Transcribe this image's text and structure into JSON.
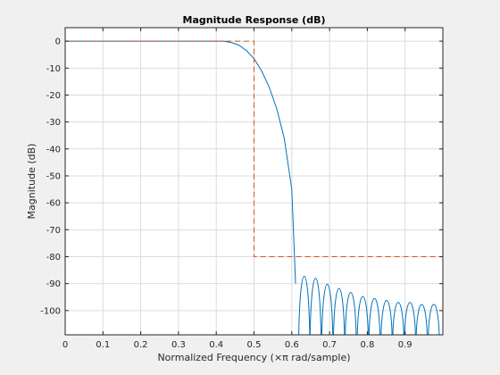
{
  "chart_data": {
    "type": "line",
    "title": "Magnitude Response (dB)",
    "xlabel": "Normalized Frequency (×π rad/sample)",
    "ylabel": "Magnitude (dB)",
    "xlim": [
      0,
      1
    ],
    "ylim": [
      -109,
      5
    ],
    "xticks": [
      0,
      0.1,
      0.2,
      0.3,
      0.4,
      0.5,
      0.6,
      0.7,
      0.8,
      0.9
    ],
    "xtick_labels": [
      "0",
      "0.1",
      "0.2",
      "0.3",
      "0.4",
      "0.5",
      "0.6",
      "0.7",
      "0.8",
      "0.9"
    ],
    "yticks": [
      0,
      -10,
      -20,
      -30,
      -40,
      -50,
      -60,
      -70,
      -80,
      -90,
      -100
    ],
    "ytick_labels": [
      "0",
      "-10",
      "-20",
      "-30",
      "-40",
      "-50",
      "-60",
      "-70",
      "-80",
      "-90",
      "-100"
    ],
    "grid": true,
    "series": [
      {
        "type": "line",
        "color": "#0072bd",
        "x": [
          0,
          0.42,
          0.44,
          0.46,
          0.48,
          0.5,
          0.52,
          0.54,
          0.56,
          0.58,
          0.6,
          0.61
        ],
        "y": [
          0,
          0,
          -0.5,
          -1.5,
          -3.5,
          -6.5,
          -11,
          -17,
          -25,
          -36,
          -55,
          -90
        ],
        "sidelobes": {
          "centers": [
            0.633,
            0.663,
            0.694,
            0.725,
            0.756,
            0.788,
            0.819,
            0.851,
            0.882,
            0.913,
            0.944,
            0.976
          ],
          "peaks": [
            -80,
            -81,
            -84,
            -86,
            -88,
            -90,
            -91,
            -92,
            -93,
            -93,
            -94,
            -94
          ],
          "half_width": 0.0145,
          "floor": -109
        }
      },
      {
        "type": "mask",
        "color": "#d95319",
        "dash": "dashed",
        "x": [
          0,
          0.5,
          0.5,
          1
        ],
        "y": [
          0,
          0,
          -80,
          -80
        ]
      }
    ]
  }
}
